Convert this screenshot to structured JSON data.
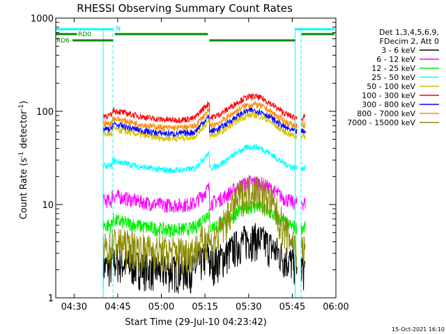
{
  "chart_data": {
    "type": "line",
    "title": "RHESSI Observing Summary Count Rates",
    "xlabel": "Start Time (29-Jul-10 04:23:42)",
    "ylabel_parts": {
      "base": "Count Rate (s",
      "sup1": "-1",
      "mid": " detector",
      "sup2": "-1",
      "end": ")"
    },
    "ylim": [
      1,
      1000
    ],
    "yscale": "log",
    "y_tick_labels": [
      {
        "value": 1,
        "label": "1"
      },
      {
        "value": 10,
        "label": "10"
      },
      {
        "value": 100,
        "label": "100"
      },
      {
        "value": 1000,
        "label": "1000"
      }
    ],
    "xlim_minutes": [
      -3.7,
      64.5
    ],
    "x_tick_labels": [
      {
        "minute": 0,
        "label": "04:30"
      },
      {
        "minute": 15,
        "label": "04:45"
      },
      {
        "minute": 30,
        "label": "05:00"
      },
      {
        "minute": 45,
        "label": "05:15"
      },
      {
        "minute": 60,
        "label": "05:30"
      },
      {
        "minute": 75,
        "label": "05:45"
      },
      {
        "minute": 90,
        "label": "06:00"
      }
    ],
    "legend": {
      "header": [
        "Det 1,3,4,5,6,9,",
        "FDecim 2, Att 0"
      ],
      "placement": "right"
    },
    "series": [
      {
        "name": "3 - 6 keV",
        "color": "#000000",
        "level": 2.2
      },
      {
        "name": "6 - 12 keV",
        "color": "#ff00ff",
        "level": 11
      },
      {
        "name": "12 - 25 keV",
        "color": "#00ee00",
        "level": 6
      },
      {
        "name": "25 - 50 keV",
        "color": "#00ffff",
        "level": 26
      },
      {
        "name": "50 - 100 keV",
        "color": "#d8c000",
        "level": 57
      },
      {
        "name": "100 - 300 keV",
        "color": "#ff0000",
        "level": 90
      },
      {
        "name": "300 - 800 keV",
        "color": "#0000ff",
        "level": 64
      },
      {
        "name": "800 - 7000 keV",
        "color": "#ff8800",
        "level": 74
      },
      {
        "name": "7000 - 15000 keV",
        "color": "#8b8b00",
        "level": 3.5
      }
    ],
    "markers": {
      "N_label": "N",
      "RD0_label": "RD0",
      "RD6_label": "RD6"
    }
  },
  "footer": {
    "timestamp": "15-Oct-2021 16:10"
  }
}
